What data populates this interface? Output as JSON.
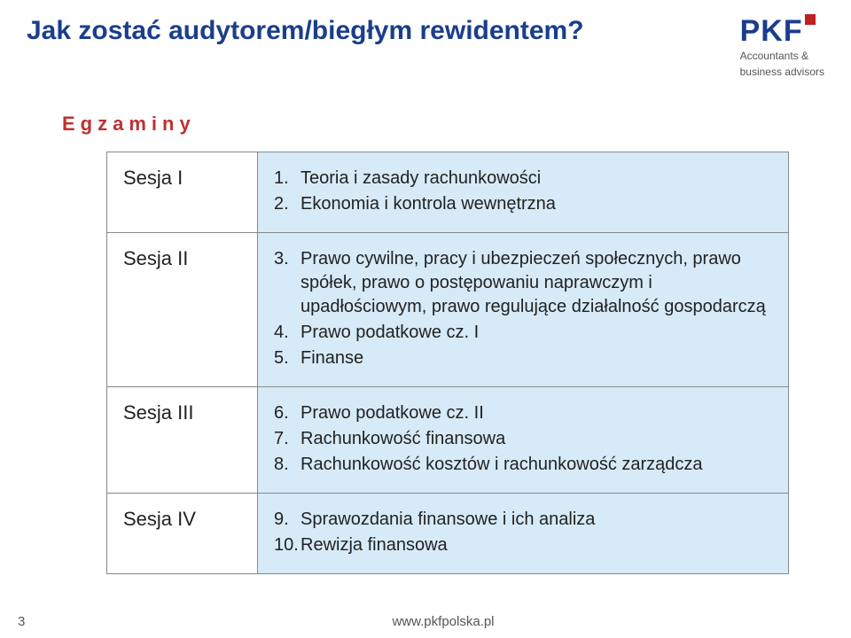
{
  "header": {
    "title": "Jak zostać audytorem/biegłym rewidentem?",
    "logo_text": "PKF",
    "logo_sub1": "Accountants &",
    "logo_sub2": "business advisors"
  },
  "section_label": "Egzaminy",
  "colors": {
    "title": "#1a3e8c",
    "section_label": "#c03030",
    "cell_right_bg": "#d7eaf7",
    "border": "#888888",
    "logo_dot": "#c02020"
  },
  "rows": [
    {
      "session": "Sesja I",
      "items": [
        {
          "n": "1.",
          "t": "Teoria i zasady rachunkowości"
        },
        {
          "n": "2.",
          "t": "Ekonomia i kontrola wewnętrzna"
        }
      ]
    },
    {
      "session": "Sesja II",
      "items": [
        {
          "n": "3.",
          "t": "Prawo cywilne, pracy i ubezpieczeń społecznych, prawo spółek, prawo o postępowaniu naprawczym i upadłościowym, prawo regulujące działalność gospodarczą"
        },
        {
          "n": "4.",
          "t": "Prawo podatkowe cz. I"
        },
        {
          "n": "5.",
          "t": "Finanse"
        }
      ]
    },
    {
      "session": "Sesja III",
      "items": [
        {
          "n": "6.",
          "t": "Prawo podatkowe cz. II"
        },
        {
          "n": "7.",
          "t": "Rachunkowość finansowa"
        },
        {
          "n": "8.",
          "t": "Rachunkowość kosztów i rachunkowość zarządcza"
        }
      ]
    },
    {
      "session": "Sesja IV",
      "items": [
        {
          "n": "9.",
          "t": "Sprawozdania finansowe i ich analiza"
        },
        {
          "n": "10.",
          "t": "Rewizja finansowa"
        }
      ]
    }
  ],
  "footer": {
    "page": "3",
    "url": "www.pkfpolska.pl"
  }
}
